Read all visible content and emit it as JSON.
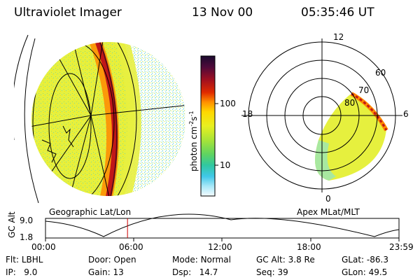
{
  "header": {
    "instrument": "Ultraviolet Imager",
    "date": "13 Nov 00",
    "time": "05:35:46 UT"
  },
  "colorbar": {
    "unit_label": "photon cm",
    "unit_exp1": "-2",
    "unit_s": "s",
    "unit_exp2": "-1",
    "tick_100": "100",
    "tick_10": "10",
    "colors": [
      "#1a0a2e",
      "#3a0a3a",
      "#800030",
      "#c81010",
      "#ff6a00",
      "#ffb000",
      "#ffe500",
      "#d8f020",
      "#9ae03a",
      "#5fd060",
      "#30c8a8",
      "#40c8e8",
      "#a0e8f8",
      "#ffffff"
    ]
  },
  "left_panel": {
    "caption": "Geographic Lat/Lon",
    "bg_color": "#e4f03c",
    "arc_color": "#c01818"
  },
  "right_panel": {
    "caption": "Apex MLat/MLT",
    "mlt_labels": {
      "top": "12",
      "left": "18",
      "right": "6",
      "bottom": "0"
    },
    "lat_labels": [
      "60",
      "70",
      "80"
    ]
  },
  "timeline": {
    "axis_label": "GC Alt",
    "y_top": "9.0",
    "y_bottom": "1.8",
    "ticks": [
      "00:00",
      "06:00",
      "12:00",
      "18:00",
      "23:59"
    ],
    "current_fraction": 0.232,
    "marker_color": "#cc0000"
  },
  "info": {
    "col1": [
      {
        "label": "Flt:",
        "value": "LBHL"
      },
      {
        "label": "IP:",
        "value": "9.0"
      }
    ],
    "col2": [
      {
        "label": "Door:",
        "value": "Open"
      },
      {
        "label": "Gain:",
        "value": "13"
      }
    ],
    "col3": [
      {
        "label": "Mode:",
        "value": "Normal"
      },
      {
        "label": "Dsp:",
        "value": "14.7"
      }
    ],
    "col4": [
      {
        "label": "GC Alt:",
        "value": "3.8 Re"
      },
      {
        "label": "Seq:",
        "value": "39"
      }
    ],
    "col5": [
      {
        "label": "GLat:",
        "value": "-86.3"
      },
      {
        "label": "GLon:",
        "value": "49.5"
      }
    ]
  }
}
